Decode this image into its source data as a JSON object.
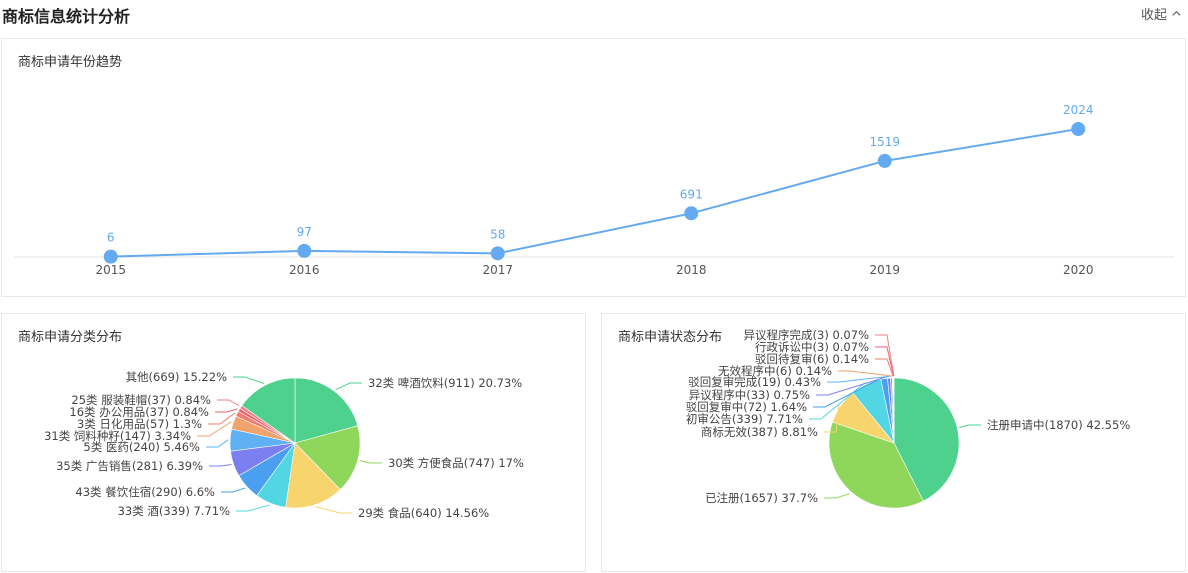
{
  "header": {
    "title": "商标信息统计分析",
    "collapse_label": "收起"
  },
  "chart_data": [
    {
      "type": "line",
      "title": "商标申请年份趋势",
      "x": [
        "2015",
        "2016",
        "2017",
        "2018",
        "2019",
        "2020"
      ],
      "series": [
        {
          "values": [
            6,
            97,
            58,
            691,
            1519,
            2024
          ]
        }
      ],
      "ylim": [
        0,
        2200
      ],
      "grid": false,
      "color": "#64aaf0"
    },
    {
      "type": "pie",
      "title": "商标申请分类分布",
      "start_angle_deg": 0,
      "slices": [
        {
          "label": "32类 啤酒饮料(911) 20.73%",
          "value": 20.73,
          "color": "#4dd18d"
        },
        {
          "label": "30类 方便食品(747) 17%",
          "value": 17.0,
          "color": "#8fd75a"
        },
        {
          "label": "29类 食品(640) 14.56%",
          "value": 14.56,
          "color": "#f7d46e"
        },
        {
          "label": "33类 酒(339) 7.71%",
          "value": 7.71,
          "color": "#52d6e3"
        },
        {
          "label": "43类 餐饮住宿(290) 6.6%",
          "value": 6.6,
          "color": "#4a9ff0"
        },
        {
          "label": "35类 广告销售(281) 6.39%",
          "value": 6.39,
          "color": "#7b7ff0"
        },
        {
          "label": "5类 医药(240) 5.46%",
          "value": 5.46,
          "color": "#5fb0f5"
        },
        {
          "label": "31类 饲料种籽(147) 3.34%",
          "value": 3.34,
          "color": "#f2a26b"
        },
        {
          "label": "3类 日化用品(57) 1.3%",
          "value": 1.3,
          "color": "#ef7c6d"
        },
        {
          "label": "16类 办公用品(37) 0.84%",
          "value": 0.84,
          "color": "#ec5f6f"
        },
        {
          "label": "25类 服装鞋帽(37) 0.84%",
          "value": 0.84,
          "color": "#f07f80"
        },
        {
          "label": "其他(669) 15.22%",
          "value": 15.22,
          "color": "#4dd18d"
        }
      ]
    },
    {
      "type": "pie",
      "title": "商标申请状态分布",
      "start_angle_deg": 0,
      "slices": [
        {
          "label": "注册申请中(1870) 42.55%",
          "value": 42.55,
          "color": "#4dd18d"
        },
        {
          "label": "已注册(1657) 37.7%",
          "value": 37.7,
          "color": "#8fd75a"
        },
        {
          "label": "商标无效(387) 8.81%",
          "value": 8.81,
          "color": "#f7d46e"
        },
        {
          "label": "初审公告(339) 7.71%",
          "value": 7.71,
          "color": "#52d6e3"
        },
        {
          "label": "驳回复审中(72) 1.64%",
          "value": 1.64,
          "color": "#4a9ff0"
        },
        {
          "label": "异议程序中(33) 0.75%",
          "value": 0.75,
          "color": "#7b7ff0"
        },
        {
          "label": "驳回复审完成(19) 0.43%",
          "value": 0.43,
          "color": "#5fb0f5"
        },
        {
          "label": "无效程序中(6) 0.14%",
          "value": 0.14,
          "color": "#f2a26b"
        },
        {
          "label": "驳回待复审(6) 0.14%",
          "value": 0.14,
          "color": "#ef7c6d"
        },
        {
          "label": "行政诉讼中(3) 0.07%",
          "value": 0.07,
          "color": "#ec5f6f"
        },
        {
          "label": "异议程序完成(3) 0.07%",
          "value": 0.07,
          "color": "#f07f80"
        }
      ]
    }
  ]
}
